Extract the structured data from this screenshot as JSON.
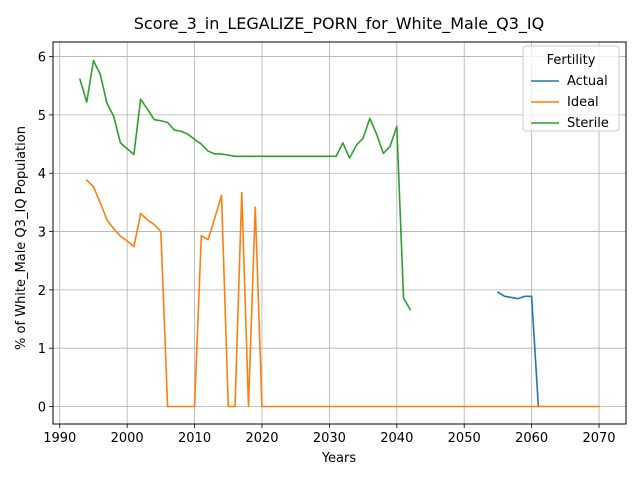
{
  "chart_data": {
    "type": "line",
    "title": "Score_3_in_LEGALIZE_PORN_for_White_Male_Q3_IQ",
    "xlabel": "Years",
    "ylabel": "% of White_Male Q3_IQ Population",
    "xlim": [
      1989,
      2074
    ],
    "ylim": [
      -0.3,
      6.25
    ],
    "xticks": [
      1990,
      2000,
      2010,
      2020,
      2030,
      2040,
      2050,
      2060,
      2070
    ],
    "yticks": [
      0,
      1,
      2,
      3,
      4,
      5,
      6
    ],
    "grid": true,
    "legend": {
      "title": "Fertility",
      "placement": "top-right"
    },
    "series": [
      {
        "name": "Actual",
        "color": "#1f77b4",
        "x": [
          2055,
          2056,
          2057,
          2058,
          2059,
          2060,
          2061
        ],
        "y": [
          1.96,
          1.89,
          1.87,
          1.85,
          1.89,
          1.89,
          0.0
        ]
      },
      {
        "name": "Ideal",
        "color": "#ff7f0e",
        "x": [
          1994,
          1995,
          1996,
          1997,
          1998,
          1999,
          2000,
          2001,
          2002,
          2003,
          2004,
          2005,
          2006,
          2007,
          2008,
          2009,
          2010,
          2011,
          2012,
          2013,
          2014,
          2015,
          2016,
          2017,
          2018,
          2019,
          2020,
          2030,
          2040,
          2050,
          2060,
          2070
        ],
        "y": [
          3.88,
          3.77,
          3.5,
          3.2,
          3.05,
          2.92,
          2.84,
          2.74,
          3.31,
          3.2,
          3.12,
          3.0,
          0.0,
          0.0,
          0.0,
          0.0,
          0.0,
          2.93,
          2.86,
          3.23,
          3.62,
          0.0,
          0.0,
          3.67,
          0.0,
          3.42,
          0.0,
          0.0,
          0.0,
          0.0,
          0.0,
          0.0
        ]
      },
      {
        "name": "Sterile",
        "color": "#2ca02c",
        "x": [
          1993,
          1994,
          1995,
          1996,
          1997,
          1998,
          1999,
          2000,
          2001,
          2002,
          2003,
          2004,
          2005,
          2006,
          2007,
          2008,
          2009,
          2010,
          2011,
          2012,
          2013,
          2014,
          2015,
          2016,
          2017,
          2018,
          2019,
          2020,
          2025,
          2030,
          2031,
          2032,
          2033,
          2034,
          2035,
          2036,
          2037,
          2038,
          2039,
          2040,
          2041,
          2042
        ],
        "y": [
          5.61,
          5.22,
          5.93,
          5.7,
          5.2,
          4.98,
          4.52,
          4.42,
          4.32,
          5.27,
          5.1,
          4.92,
          4.9,
          4.87,
          4.74,
          4.72,
          4.67,
          4.58,
          4.5,
          4.38,
          4.33,
          4.33,
          4.31,
          4.29,
          4.29,
          4.29,
          4.29,
          4.29,
          4.29,
          4.29,
          4.29,
          4.52,
          4.26,
          4.48,
          4.6,
          4.94,
          4.67,
          4.34,
          4.46,
          4.8,
          1.86,
          1.66
        ]
      }
    ]
  }
}
